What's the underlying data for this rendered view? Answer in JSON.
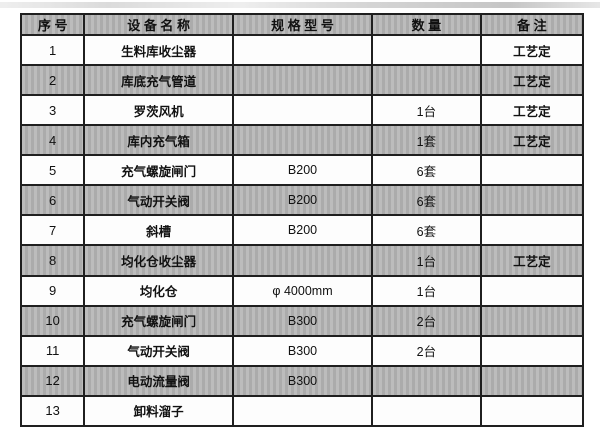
{
  "colors": {
    "shade": "#b4b4b4",
    "row_white": "#fdfdfd",
    "border": "#1f1f1f",
    "text": "#111111"
  },
  "table": {
    "headers": [
      "序 号",
      "设 备 名 称",
      "规 格 型 号",
      "数  量",
      "备 注"
    ],
    "columns": [
      "no",
      "name",
      "spec",
      "qty",
      "note"
    ],
    "rows": [
      {
        "no": "1",
        "name": "生料库收尘器",
        "spec": "",
        "qty": "",
        "note": "工艺定"
      },
      {
        "no": "2",
        "name": "库底充气管道",
        "spec": "",
        "qty": "",
        "note": "工艺定"
      },
      {
        "no": "3",
        "name": "罗茨风机",
        "spec": "",
        "qty": "1台",
        "note": "工艺定"
      },
      {
        "no": "4",
        "name": "库内充气箱",
        "spec": "",
        "qty": "1套",
        "note": "工艺定"
      },
      {
        "no": "5",
        "name": "充气螺旋闸门",
        "spec": "B200",
        "qty": "6套",
        "note": ""
      },
      {
        "no": "6",
        "name": "气动开关阀",
        "spec": "B200",
        "qty": "6套",
        "note": ""
      },
      {
        "no": "7",
        "name": "斜槽",
        "spec": "B200",
        "qty": "6套",
        "note": ""
      },
      {
        "no": "8",
        "name": "均化仓收尘器",
        "spec": "",
        "qty": "1台",
        "note": "工艺定"
      },
      {
        "no": "9",
        "name": "均化仓",
        "spec": "φ 4000mm",
        "qty": "1台",
        "note": ""
      },
      {
        "no": "10",
        "name": "充气螺旋闸门",
        "spec": "B300",
        "qty": "2台",
        "note": ""
      },
      {
        "no": "11",
        "name": "气动开关阀",
        "spec": "B300",
        "qty": "2台",
        "note": ""
      },
      {
        "no": "12",
        "name": "电动流量阀",
        "spec": "B300",
        "qty": "",
        "note": ""
      },
      {
        "no": "13",
        "name": "卸料溜子",
        "spec": "",
        "qty": "",
        "note": ""
      }
    ]
  }
}
